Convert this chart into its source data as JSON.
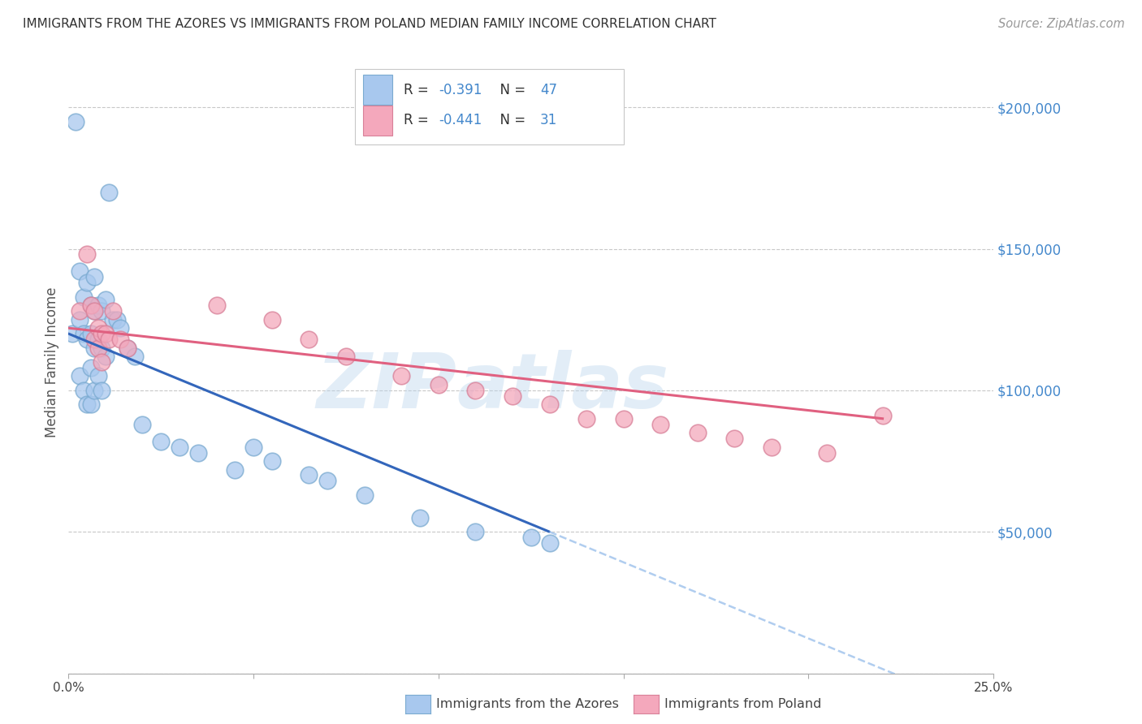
{
  "title": "IMMIGRANTS FROM THE AZORES VS IMMIGRANTS FROM POLAND MEDIAN FAMILY INCOME CORRELATION CHART",
  "source": "Source: ZipAtlas.com",
  "ylabel": "Median Family Income",
  "xlim": [
    0.0,
    0.25
  ],
  "ylim": [
    0,
    220000
  ],
  "yticks": [
    0,
    50000,
    100000,
    150000,
    200000
  ],
  "ytick_labels": [
    "",
    "$50,000",
    "$100,000",
    "$150,000",
    "$200,000"
  ],
  "xtick_labels": [
    "0.0%",
    "",
    "",
    "",
    "",
    "25.0%"
  ],
  "background_color": "#ffffff",
  "grid_color": "#c8c8c8",
  "azores_color": "#A8C8EE",
  "poland_color": "#F4A8BC",
  "azores_edge": "#7aaad0",
  "poland_edge": "#d88098",
  "line_blue": "#3366BB",
  "line_pink": "#E06080",
  "line_dashed_color": "#A8C8EE",
  "text_color_blue": "#4488CC",
  "text_color_dark": "#333333",
  "text_color_gray": "#999999",
  "legend_label1": "Immigrants from the Azores",
  "legend_label2": "Immigrants from Poland",
  "watermark_color": "#B8D4EC",
  "azores_x": [
    0.001,
    0.002,
    0.003,
    0.003,
    0.003,
    0.004,
    0.004,
    0.004,
    0.005,
    0.005,
    0.005,
    0.006,
    0.006,
    0.006,
    0.006,
    0.007,
    0.007,
    0.007,
    0.007,
    0.008,
    0.008,
    0.008,
    0.009,
    0.009,
    0.009,
    0.01,
    0.01,
    0.011,
    0.012,
    0.013,
    0.014,
    0.016,
    0.018,
    0.02,
    0.025,
    0.03,
    0.035,
    0.045,
    0.05,
    0.055,
    0.065,
    0.07,
    0.08,
    0.095,
    0.11,
    0.125,
    0.13
  ],
  "azores_y": [
    120000,
    195000,
    142000,
    125000,
    105000,
    133000,
    120000,
    100000,
    138000,
    118000,
    95000,
    130000,
    120000,
    108000,
    95000,
    140000,
    128000,
    115000,
    100000,
    130000,
    118000,
    105000,
    128000,
    115000,
    100000,
    132000,
    112000,
    170000,
    125000,
    125000,
    122000,
    115000,
    112000,
    88000,
    82000,
    80000,
    78000,
    72000,
    80000,
    75000,
    70000,
    68000,
    63000,
    55000,
    50000,
    48000,
    46000
  ],
  "poland_x": [
    0.003,
    0.005,
    0.006,
    0.007,
    0.007,
    0.008,
    0.008,
    0.009,
    0.009,
    0.01,
    0.011,
    0.012,
    0.014,
    0.016,
    0.04,
    0.055,
    0.065,
    0.075,
    0.09,
    0.1,
    0.11,
    0.12,
    0.13,
    0.14,
    0.15,
    0.16,
    0.17,
    0.18,
    0.19,
    0.205,
    0.22
  ],
  "poland_y": [
    128000,
    148000,
    130000,
    128000,
    118000,
    122000,
    115000,
    120000,
    110000,
    120000,
    118000,
    128000,
    118000,
    115000,
    130000,
    125000,
    118000,
    112000,
    105000,
    102000,
    100000,
    98000,
    95000,
    90000,
    90000,
    88000,
    85000,
    83000,
    80000,
    78000,
    91000
  ]
}
